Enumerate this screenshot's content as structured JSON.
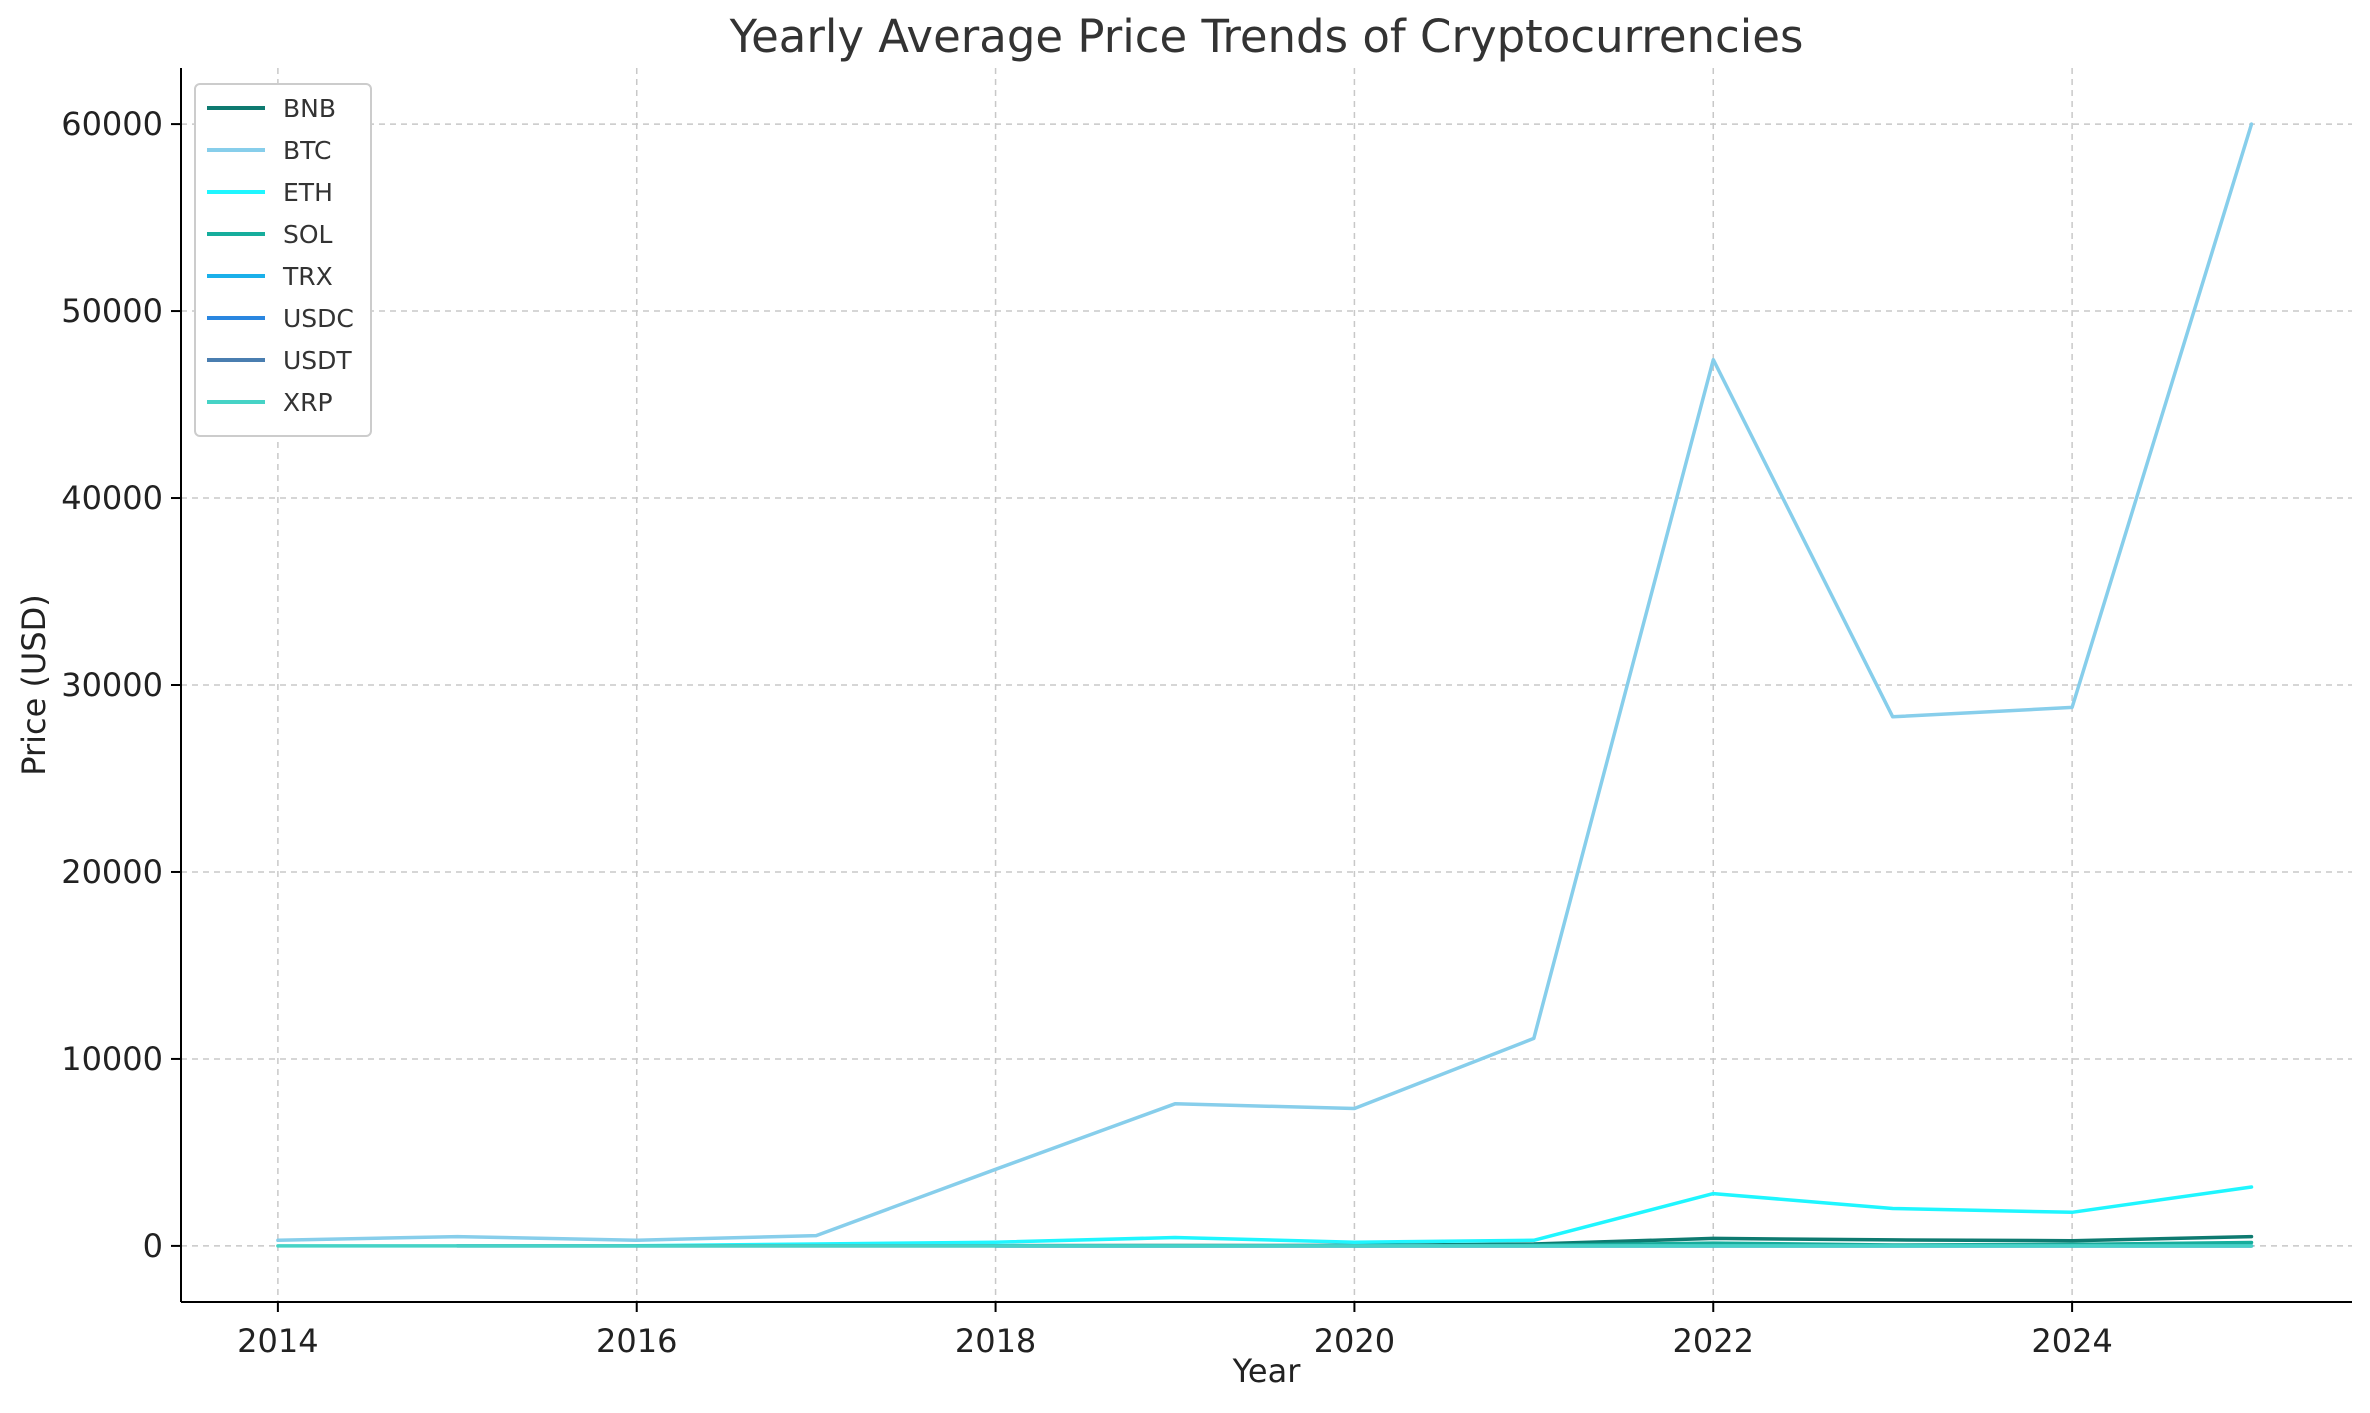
{
  "chart_data": {
    "type": "line",
    "title": "Yearly Average Price Trends of Cryptocurrencies",
    "xlabel": "Year",
    "ylabel": "Price (USD)",
    "x": [
      2014,
      2015,
      2016,
      2017,
      2018,
      2019,
      2020,
      2021,
      2022,
      2023,
      2024,
      2025
    ],
    "xlim": [
      2013.46,
      2025.56
    ],
    "ylim": [
      -3000,
      63000
    ],
    "x_ticks": [
      2014,
      2016,
      2018,
      2020,
      2022,
      2024
    ],
    "x_tick_labels": [
      "2014",
      "2016",
      "2018",
      "2020",
      "2022",
      "2024"
    ],
    "y_ticks": [
      0,
      10000,
      20000,
      30000,
      40000,
      50000,
      60000
    ],
    "y_tick_labels": [
      "0",
      "10000",
      "20000",
      "30000",
      "40000",
      "50000",
      "60000"
    ],
    "grid": true,
    "legend_position": "top-left",
    "series": [
      {
        "name": "BNB",
        "color": "#0e7a70",
        "values": [
          null,
          null,
          null,
          5,
          10,
          20,
          25,
          100,
          400,
          320,
          280,
          500
        ]
      },
      {
        "name": "BTC",
        "color": "#87ceeb",
        "values": [
          300,
          500,
          300,
          550,
          4100,
          7600,
          7350,
          11100,
          47400,
          28300,
          28800,
          60000
        ]
      },
      {
        "name": "ETH",
        "color": "#1ff6ff",
        "values": [
          null,
          null,
          10,
          100,
          200,
          450,
          200,
          300,
          2800,
          2000,
          1800,
          3150
        ]
      },
      {
        "name": "SOL",
        "color": "#16ad9c",
        "values": [
          null,
          null,
          null,
          null,
          null,
          null,
          2,
          30,
          150,
          50,
          80,
          180
        ]
      },
      {
        "name": "TRX",
        "color": "#1ab0ea",
        "values": [
          null,
          null,
          null,
          null,
          0.05,
          0.02,
          0.02,
          0.07,
          0.08,
          0.06,
          0.09,
          0.2
        ]
      },
      {
        "name": "USDC",
        "color": "#2a86e0",
        "values": [
          null,
          null,
          null,
          null,
          1,
          1,
          1,
          1,
          1,
          1,
          1,
          1
        ]
      },
      {
        "name": "USDT",
        "color": "#4a7eb0",
        "values": [
          null,
          1,
          1,
          1,
          1,
          1,
          1,
          1,
          1,
          1,
          1,
          1
        ]
      },
      {
        "name": "XRP",
        "color": "#46d3c6",
        "values": [
          0.01,
          0.01,
          0.01,
          0.2,
          0.6,
          0.3,
          0.2,
          0.8,
          0.9,
          0.5,
          0.5,
          2.2
        ]
      }
    ]
  }
}
